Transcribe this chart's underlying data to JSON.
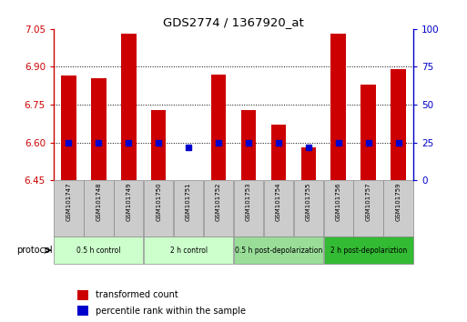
{
  "title": "GDS2774 / 1367920_at",
  "samples": [
    "GSM101747",
    "GSM101748",
    "GSM101749",
    "GSM101750",
    "GSM101751",
    "GSM101752",
    "GSM101753",
    "GSM101754",
    "GSM101755",
    "GSM101756",
    "GSM101757",
    "GSM101759"
  ],
  "transformed_counts": [
    6.865,
    6.855,
    7.03,
    6.73,
    6.45,
    6.87,
    6.73,
    6.67,
    6.58,
    7.03,
    6.83,
    6.89
  ],
  "percentile_ranks": [
    25,
    25,
    25,
    25,
    22,
    25,
    25,
    25,
    22,
    25,
    25,
    25
  ],
  "ylim_left": [
    6.45,
    7.05
  ],
  "ylim_right": [
    0,
    100
  ],
  "yticks_left": [
    6.45,
    6.6,
    6.75,
    6.9,
    7.05
  ],
  "yticks_right": [
    0,
    25,
    50,
    75,
    100
  ],
  "bar_color": "#cc0000",
  "dot_color": "#0000cc",
  "groups": [
    {
      "label": "0.5 h control",
      "start": 0,
      "end": 3,
      "color": "#ccffcc"
    },
    {
      "label": "2 h control",
      "start": 3,
      "end": 6,
      "color": "#ccffcc"
    },
    {
      "label": "0.5 h post-depolarization",
      "start": 6,
      "end": 9,
      "color": "#99dd99"
    },
    {
      "label": "2 h post-depolariztion",
      "start": 9,
      "end": 12,
      "color": "#33bb33"
    }
  ],
  "protocol_label": "protocol",
  "legend_items": [
    {
      "color": "#cc0000",
      "label": "transformed count"
    },
    {
      "color": "#0000cc",
      "label": "percentile rank within the sample"
    }
  ],
  "tick_color_left": "#cc0000",
  "tick_color_right": "#0000cc",
  "bar_bottom": 6.45,
  "sample_box_color": "#cccccc",
  "sample_box_edge": "#888888",
  "group_edge": "#888888"
}
